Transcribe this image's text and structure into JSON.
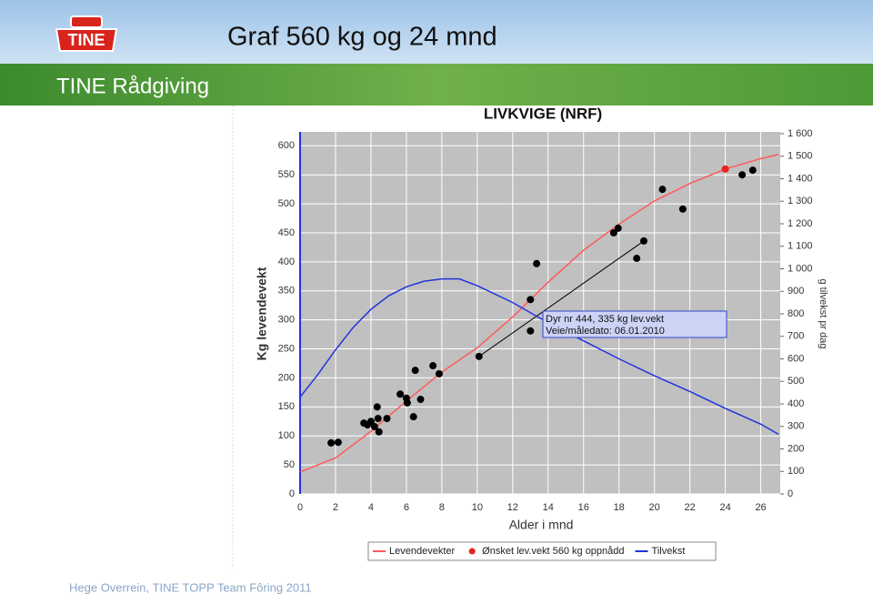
{
  "header": {
    "logo": "TINE",
    "title": "Graf 560 kg og 24 mnd",
    "subtitle": "TINE Rådgiving"
  },
  "chart_data": {
    "type": "line",
    "title": "LIVKVIGE (NRF)",
    "xlabel": "Alder i mnd",
    "ylabel": "Kg levendevekt",
    "y2label": "g tilvekst pr dag",
    "xlim": [
      0,
      27.1
    ],
    "ylim": [
      0,
      624
    ],
    "y2lim": [
      0,
      1608
    ],
    "xticks": [
      0,
      2,
      4,
      6,
      8,
      10,
      12,
      14,
      16,
      18,
      20,
      22,
      24,
      26
    ],
    "yticks": [
      0,
      50,
      100,
      150,
      200,
      250,
      300,
      350,
      400,
      450,
      500,
      550,
      600
    ],
    "y2ticks": [
      0,
      100,
      200,
      300,
      400,
      500,
      600,
      700,
      800,
      900,
      {
        "value": 1000,
        "label": "1 000"
      },
      {
        "value": 1100,
        "label": "1 100"
      },
      {
        "value": 1200,
        "label": "1 200"
      },
      {
        "value": 1300,
        "label": "1 300"
      },
      {
        "value": 1400,
        "label": "1 400"
      },
      {
        "value": 1500,
        "label": "1 500"
      },
      {
        "value": 1600,
        "label": "1 600"
      }
    ],
    "grid": true,
    "series": [
      {
        "name": "Levendevekter",
        "color": "#ff5a5a",
        "mode": "line",
        "x": [
          0,
          2,
          4,
          6,
          8,
          10,
          12,
          14,
          16,
          18,
          20,
          22,
          24,
          26,
          27
        ],
        "values": [
          38,
          62,
          108,
          160,
          210,
          252,
          305,
          365,
          420,
          465,
          505,
          535,
          560,
          578,
          585
        ]
      },
      {
        "name": "Ønsket lev.vekt 560 kg oppnådd",
        "color": "#e8231e",
        "mode": "points",
        "x": [
          24
        ],
        "values": [
          560
        ]
      },
      {
        "name": "Tilvekst",
        "color": "#2233dd",
        "mode": "line",
        "axis": "y2",
        "x": [
          0,
          1,
          2,
          3,
          4,
          5,
          6,
          7,
          8,
          9,
          10,
          12,
          14,
          16,
          18,
          20,
          22,
          24,
          26,
          27
        ],
        "values": [
          430,
          530,
          640,
          740,
          820,
          880,
          920,
          945,
          955,
          955,
          925,
          850,
          760,
          680,
          600,
          525,
          455,
          380,
          310,
          265
        ]
      }
    ],
    "points": {
      "color": "#000000",
      "x": [
        1.75,
        2.15,
        3.6,
        3.8,
        4.0,
        4.2,
        4.35,
        4.4,
        4.45,
        4.9,
        5.65,
        6.0,
        6.05,
        6.4,
        6.5,
        6.8,
        7.5,
        7.85,
        10.1,
        13.0,
        13.0,
        13.35,
        17.7,
        17.95,
        19.0,
        19.4,
        20.45,
        21.6,
        24.95,
        25.55
      ],
      "values": [
        88,
        89,
        122,
        119,
        125,
        116,
        150,
        130,
        107,
        130,
        172,
        165,
        157,
        133,
        213,
        163,
        221,
        207,
        237,
        335,
        281,
        397,
        450,
        458,
        406,
        436,
        525,
        491,
        550,
        558
      ]
    },
    "trend_line": {
      "color": "#000000",
      "x": [
        10.1,
        19.4
      ],
      "values": [
        237,
        436
      ]
    },
    "annotation": [
      "Dyr nr 444, 335 kg lev.vekt",
      "Veie/måledato: 06.01.2010"
    ]
  },
  "footer": "Hege Overrein, TINE TOPP Team Fôring 2011"
}
